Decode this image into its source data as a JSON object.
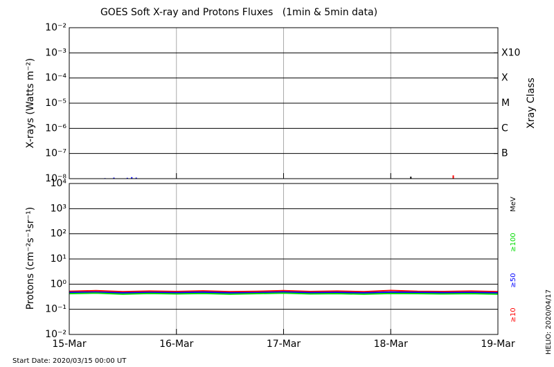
{
  "chart_data": [
    {
      "type": "line",
      "title": "GOES Soft X-ray and Protons Fluxes   (1min & 5min data)",
      "ylabel": "X-rays (Watts m⁻²)",
      "y2label": "Xray Class",
      "log_y": true,
      "grid": true,
      "x": [
        "2020-03-15T08:00",
        "2020-03-15T10:00",
        "2020-03-15T13:00",
        "2020-03-15T14:00",
        "2020-03-15T15:00",
        "2020-03-18T04:30",
        "2020-03-18T14:00"
      ],
      "series": [
        {
          "color": "#0000ff",
          "values": [
            1.05e-08,
            1.1e-08,
            1.08e-08,
            1.15e-08,
            1.1e-08,
            null,
            null
          ]
        },
        {
          "color": "#000000",
          "values": [
            null,
            null,
            null,
            null,
            null,
            1.2e-08,
            null
          ]
        },
        {
          "color": "#ff0000",
          "values": [
            null,
            null,
            null,
            null,
            null,
            null,
            1.35e-08
          ]
        }
      ],
      "xlim": [
        "2020-03-15T00:00",
        "2020-03-19T00:00"
      ],
      "xticks": [
        "2020-03-16T00:00",
        "2020-03-17T00:00",
        "2020-03-18T00:00"
      ],
      "ylim": [
        1e-08,
        0.01
      ],
      "yticks": [
        {
          "value": 0.01,
          "label": "10⁻²"
        },
        {
          "value": 0.001,
          "label": "10⁻³"
        },
        {
          "value": 0.0001,
          "label": "10⁻⁴"
        },
        {
          "value": 1e-05,
          "label": "10⁻⁵"
        },
        {
          "value": 1e-06,
          "label": "10⁻⁶"
        },
        {
          "value": 1e-07,
          "label": "10⁻⁷"
        },
        {
          "value": 1e-08,
          "label": "10⁻⁸"
        }
      ],
      "y2lim": [
        1e-08,
        0.01
      ],
      "y2ticks": [
        {
          "value": 0.001,
          "label": "X10"
        },
        {
          "value": 0.0001,
          "label": "X"
        },
        {
          "value": 1e-05,
          "label": "M"
        },
        {
          "value": 1e-06,
          "label": "C"
        },
        {
          "value": 1e-07,
          "label": "B"
        }
      ]
    },
    {
      "type": "line",
      "ylabel": "Protons (cm⁻²s⁻¹sr⁻¹)",
      "legend_title": "MeV",
      "log_y": true,
      "grid": true,
      "threshold": 10,
      "x": [
        "2020-03-15T00:00",
        "2020-03-15T06:00",
        "2020-03-15T12:00",
        "2020-03-15T18:00",
        "2020-03-16T00:00",
        "2020-03-16T06:00",
        "2020-03-16T12:00",
        "2020-03-16T18:00",
        "2020-03-17T00:00",
        "2020-03-17T06:00",
        "2020-03-17T12:00",
        "2020-03-17T18:00",
        "2020-03-18T00:00",
        "2020-03-18T06:00",
        "2020-03-18T12:00",
        "2020-03-18T18:00",
        "2020-03-19T00:00"
      ],
      "series": [
        {
          "name": "≥10",
          "color": "#ff0000",
          "values": [
            0.52,
            0.55,
            0.5,
            0.53,
            0.51,
            0.54,
            0.5,
            0.52,
            0.55,
            0.51,
            0.53,
            0.5,
            0.56,
            0.52,
            0.51,
            0.53,
            0.5
          ]
        },
        {
          "name": "≥50",
          "color": "#0000ff",
          "values": [
            0.47,
            0.48,
            0.45,
            0.47,
            0.46,
            0.48,
            0.45,
            0.46,
            0.49,
            0.46,
            0.47,
            0.45,
            0.48,
            0.47,
            0.46,
            0.47,
            0.45
          ]
        },
        {
          "name": "≥100",
          "color": "#00dd00",
          "values": [
            0.42,
            0.44,
            0.4,
            0.43,
            0.41,
            0.43,
            0.4,
            0.42,
            0.44,
            0.41,
            0.42,
            0.4,
            0.43,
            0.42,
            0.41,
            0.42,
            0.4
          ]
        }
      ],
      "xlim": [
        "2020-03-15T00:00",
        "2020-03-19T00:00"
      ],
      "xticks": [
        {
          "value": "2020-03-15T00:00",
          "label": "15-Mar"
        },
        {
          "value": "2020-03-16T00:00",
          "label": "16-Mar"
        },
        {
          "value": "2020-03-17T00:00",
          "label": "17-Mar"
        },
        {
          "value": "2020-03-18T00:00",
          "label": "18-Mar"
        },
        {
          "value": "2020-03-19T00:00",
          "label": "19-Mar"
        }
      ],
      "ylim": [
        0.01,
        10000
      ],
      "yticks": [
        {
          "value": 10000,
          "label": "10⁴"
        },
        {
          "value": 1000,
          "label": "10³"
        },
        {
          "value": 100,
          "label": "10²"
        },
        {
          "value": 10,
          "label": "10¹"
        },
        {
          "value": 1,
          "label": "10⁰"
        },
        {
          "value": 0.1,
          "label": "10⁻¹"
        },
        {
          "value": 0.01,
          "label": "10⁻²"
        }
      ],
      "annotations": [
        "Start Date: 2020/03/15 00:00 UT",
        "HELIO: 2020/04/17"
      ]
    }
  ]
}
